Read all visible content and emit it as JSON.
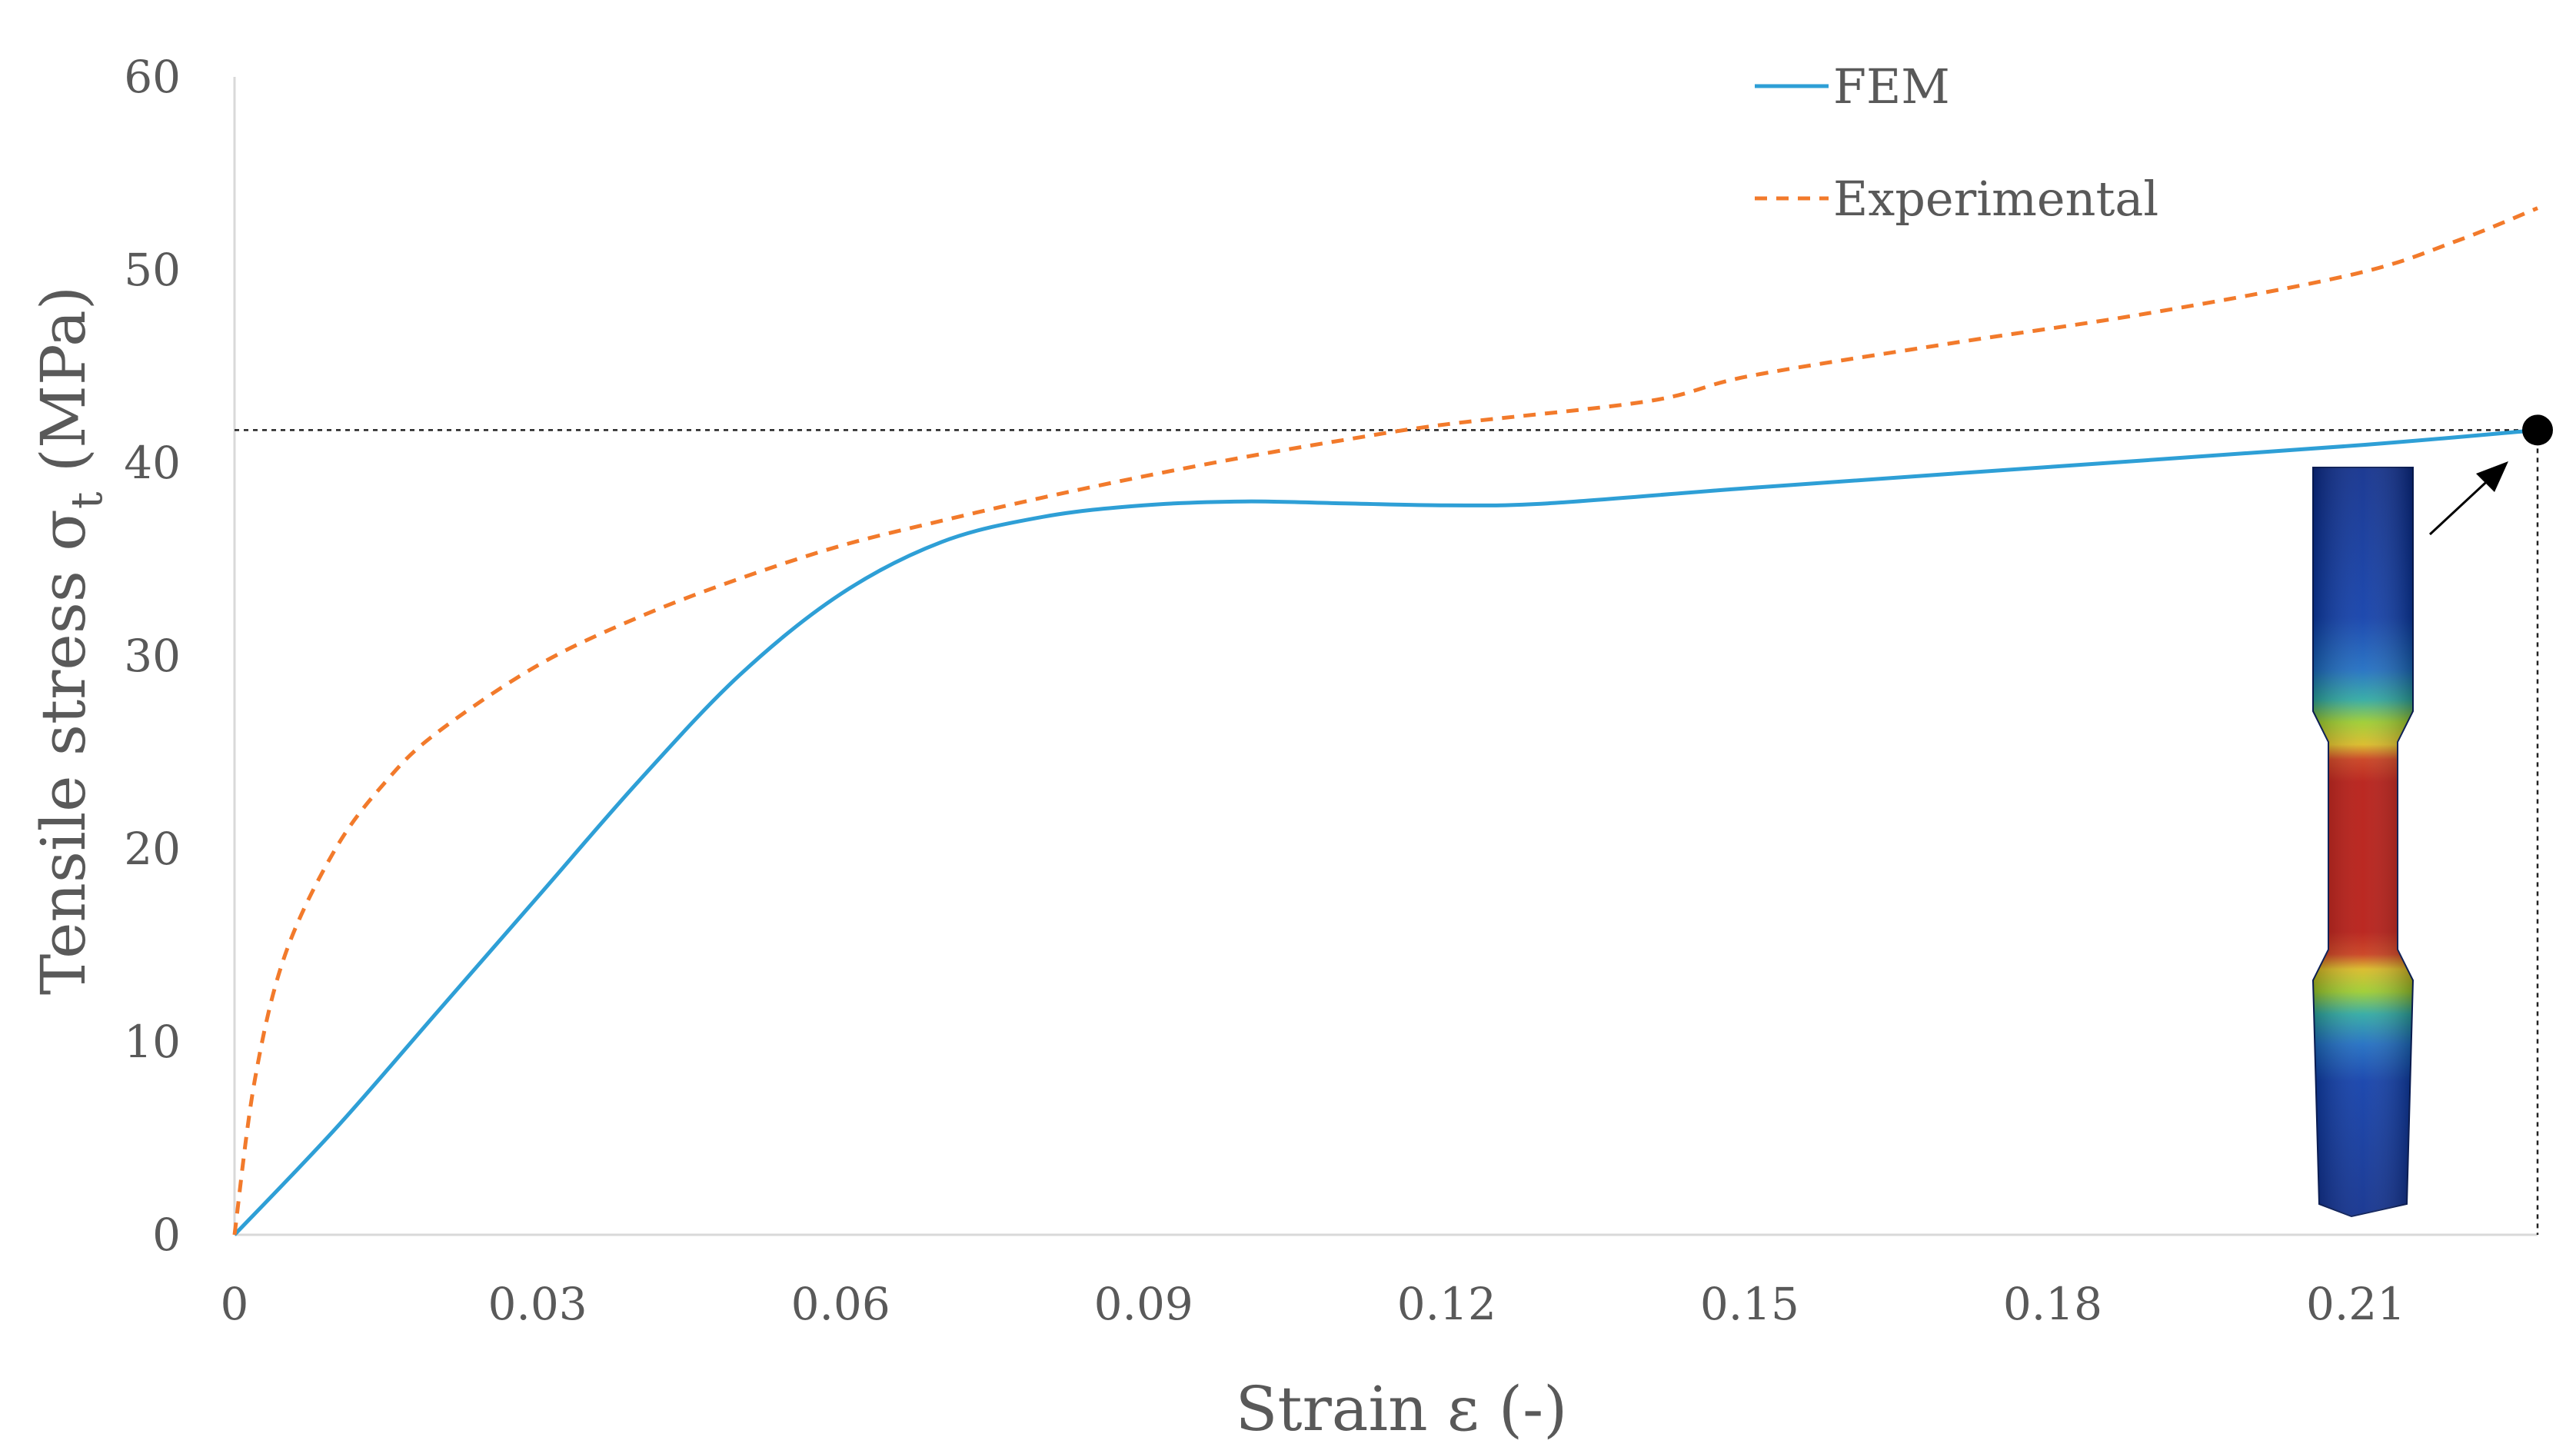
{
  "chart_data": {
    "type": "line",
    "xlabel": "Strain ε (-)",
    "ylabel": {
      "main": "Tensile stress σ",
      "subscript": "t",
      "unit": " (MPa)"
    },
    "xlim": [
      0,
      0.228
    ],
    "ylim": [
      0,
      60
    ],
    "x_ticks": [
      {
        "value": 0,
        "label": "0"
      },
      {
        "value": 0.03,
        "label": "0.03"
      },
      {
        "value": 0.06,
        "label": "0.06"
      },
      {
        "value": 0.09,
        "label": "0.09"
      },
      {
        "value": 0.12,
        "label": "0.12"
      },
      {
        "value": 0.15,
        "label": "0.15"
      },
      {
        "value": 0.18,
        "label": "0.18"
      },
      {
        "value": 0.21,
        "label": "0.21"
      }
    ],
    "y_ticks": [
      {
        "value": 0,
        "label": "0"
      },
      {
        "value": 10,
        "label": "10"
      },
      {
        "value": 20,
        "label": "20"
      },
      {
        "value": 30,
        "label": "30"
      },
      {
        "value": 40,
        "label": "40"
      },
      {
        "value": 50,
        "label": "50"
      },
      {
        "value": 60,
        "label": "60"
      }
    ],
    "grid": false,
    "legend_position": "top-right",
    "series": [
      {
        "name": "FEM",
        "color": "#2e9fd6",
        "style": "solid",
        "x": [
          0,
          0.01,
          0.02,
          0.03,
          0.04,
          0.05,
          0.06,
          0.07,
          0.08,
          0.09,
          0.1,
          0.11,
          0.12,
          0.13,
          0.15,
          0.18,
          0.21,
          0.228
        ],
        "y": [
          0,
          5.5,
          11.5,
          17.5,
          23.5,
          29,
          33.2,
          35.9,
          37.2,
          37.8,
          38,
          37.9,
          37.8,
          37.9,
          38.7,
          39.8,
          40.9,
          41.7
        ]
      },
      {
        "name": "Experimental",
        "color": "#f27a2b",
        "style": "dashed",
        "x": [
          0,
          0.002,
          0.005,
          0.01,
          0.015,
          0.02,
          0.03,
          0.04,
          0.05,
          0.06,
          0.07,
          0.08,
          0.09,
          0.1,
          0.11,
          0.12,
          0.14,
          0.15,
          0.17,
          0.19,
          0.21,
          0.22,
          0.228
        ],
        "y": [
          0,
          8,
          14.5,
          20,
          23.5,
          26,
          29.5,
          32,
          34,
          35.7,
          37,
          38.2,
          39.3,
          40.3,
          41.2,
          42,
          43.2,
          44.5,
          46.2,
          47.8,
          49.8,
          51.5,
          53.2
        ]
      }
    ],
    "annotations": {
      "max_point": {
        "x": 0.228,
        "y": 41.7
      },
      "reference_line_y": 41.7
    }
  }
}
